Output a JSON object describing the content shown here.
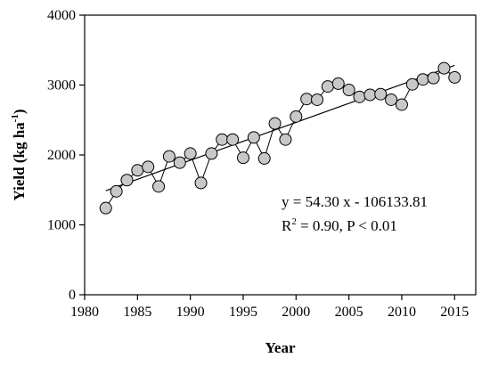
{
  "chart_data": {
    "type": "scatter",
    "xlabel": "Year",
    "ylabel_main": "Yield (kg ha",
    "ylabel_sup": "-1",
    "ylabel_close": ")",
    "xlim": [
      1980,
      2017
    ],
    "ylim": [
      0,
      4000
    ],
    "xticks": [
      1980,
      1985,
      1990,
      1995,
      2000,
      2005,
      2010,
      2015
    ],
    "yticks": [
      0,
      1000,
      2000,
      3000,
      4000
    ],
    "grid": false,
    "series": [
      {
        "x": [
          1982,
          1983,
          1984,
          1985,
          1986,
          1987,
          1988,
          1989,
          1990,
          1991,
          1992,
          1993,
          1994,
          1995,
          1996,
          1997,
          1998,
          1999,
          2000,
          2001,
          2002,
          2003,
          2004,
          2005,
          2006,
          2007,
          2008,
          2009,
          2010,
          2011,
          2012,
          2013,
          2014,
          2015
        ],
        "y": [
          1240,
          1480,
          1640,
          1780,
          1830,
          1550,
          1980,
          1890,
          2020,
          1600,
          2020,
          2220,
          2220,
          1960,
          2250,
          1950,
          2450,
          2220,
          2550,
          2800,
          2790,
          2980,
          3020,
          2930,
          2830,
          2860,
          2870,
          2790,
          2720,
          3010,
          3080,
          3100,
          3240,
          3110
        ],
        "marker_fill": "#c8c8c8",
        "line_color": "#000000"
      }
    ],
    "trendline": {
      "slope": 54.3,
      "intercept": -106133.81,
      "x_range": [
        1982,
        2015
      ],
      "color": "#000000"
    },
    "annotations": {
      "equation": "y = 54.30 x - 106133.81",
      "r2_prefix": "R",
      "r2_sup": "2",
      "r2_rest": " = 0.90, P < 0.01"
    }
  }
}
